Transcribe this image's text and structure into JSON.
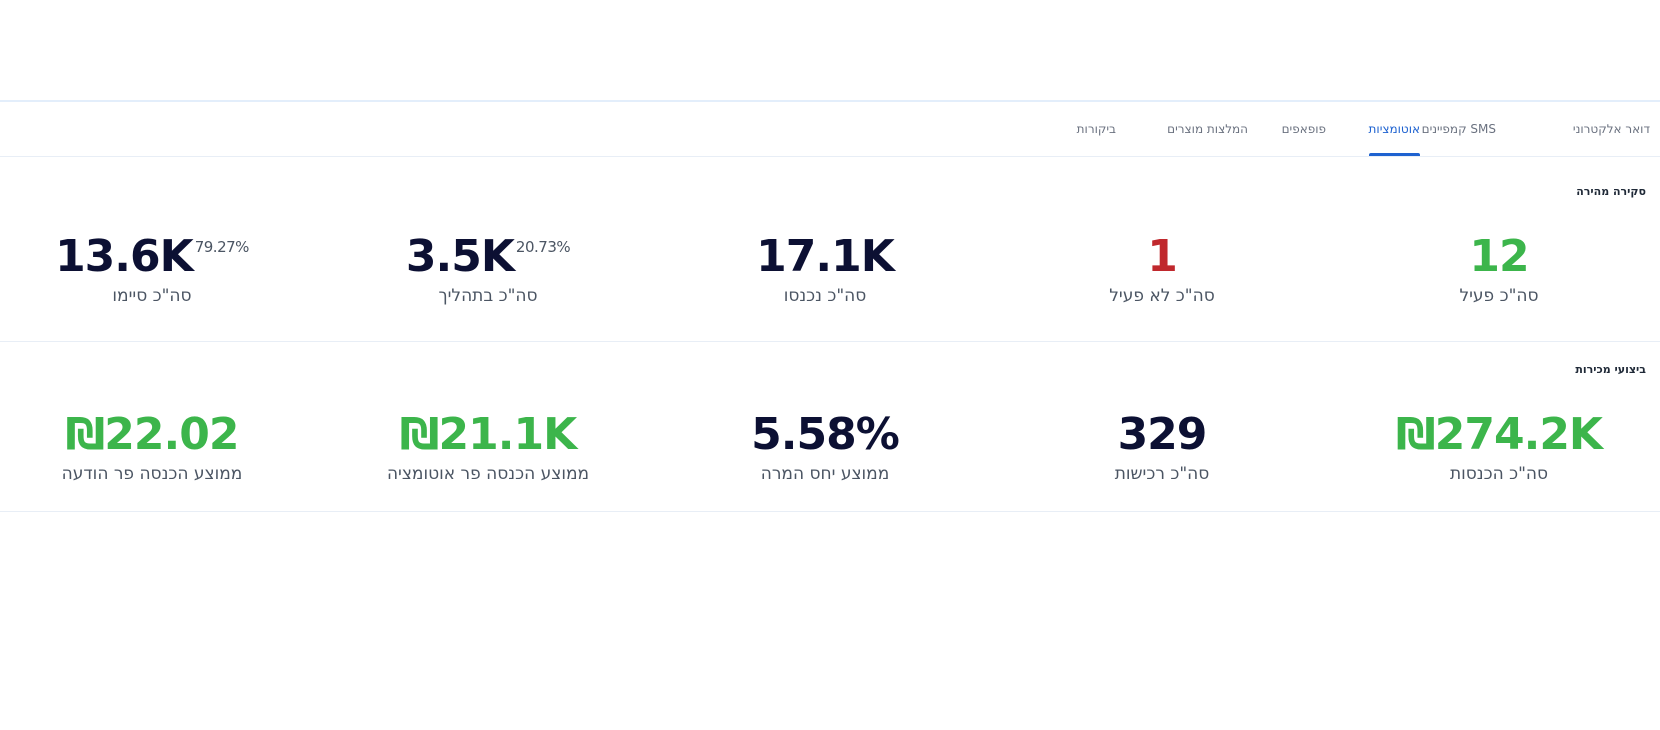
{
  "tabs": [
    {
      "label": "דואר אלקטרוני",
      "active": false
    },
    {
      "label": "קמפיינים SMS",
      "active": false
    },
    {
      "label": "אוטומציות",
      "active": true
    },
    {
      "label": "פופאפים",
      "active": false
    },
    {
      "label": "המלצות מוצרים",
      "active": false
    },
    {
      "label": "ביקורות",
      "active": false
    }
  ],
  "overview": {
    "title": "סקירה מהירה",
    "total_active": {
      "value": "12",
      "label": "סה\"כ פעיל"
    },
    "total_inactive": {
      "value": "1",
      "label": "סה\"כ לא פעיל"
    },
    "total_entered": {
      "value": "17.1K",
      "label": "סה\"כ נכנסו"
    },
    "total_in_progress": {
      "value": "3.5K",
      "pct": "20.73%",
      "label": "סה\"כ בתהליך"
    },
    "total_completed": {
      "value": "13.6K",
      "pct": "79.27%",
      "label": "סה\"כ סיימו"
    }
  },
  "sales": {
    "title": "ביצועי מכירות",
    "total_revenue": {
      "value": "₪274.2K",
      "label": "סה\"כ הכנסות"
    },
    "total_purchases": {
      "value": "329",
      "label": "סה\"כ רכישות"
    },
    "avg_conversion": {
      "value": "5.58%",
      "label": "ממוצע יחס המרה"
    },
    "avg_revenue_per_automation": {
      "value": "₪21.1K",
      "label": "ממוצע הכנסה פר אוטומציה"
    },
    "avg_revenue_per_message": {
      "value": "₪22.02",
      "label": "ממוצע הכנסה פר הודעה"
    }
  },
  "colors": {
    "accent": "#1e62d0",
    "positive": "#3cb54b",
    "negative": "#c0282d",
    "primary_text": "#0c1033"
  }
}
